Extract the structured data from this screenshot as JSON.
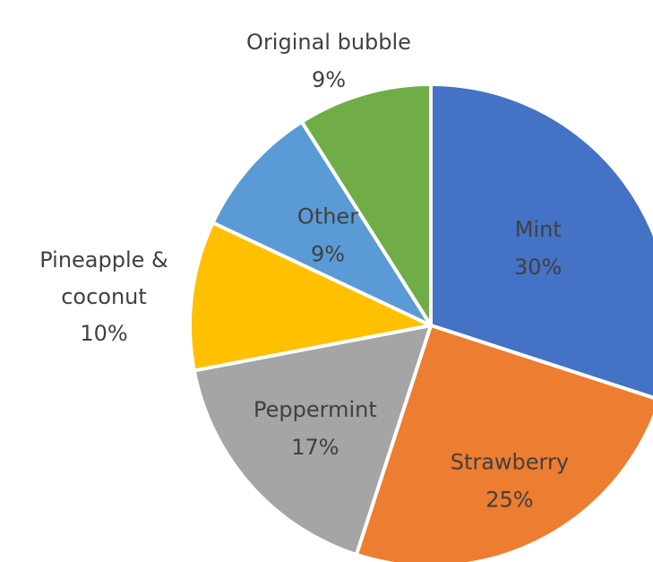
{
  "chart_data": {
    "type": "pie",
    "title": "",
    "start_angle_deg": 0,
    "direction": "clockwise",
    "legend": "none",
    "slices": [
      {
        "name": "Mint",
        "pct": 30,
        "value_label": "30%",
        "color": "#4472C4",
        "label_inside": true
      },
      {
        "name": "Strawberry",
        "pct": 25,
        "value_label": "25%",
        "color": "#ED7D31",
        "label_inside": true
      },
      {
        "name": "Peppermint",
        "pct": 17,
        "value_label": "17%",
        "color": "#A5A5A5",
        "label_inside": true
      },
      {
        "name": "Pineapple & coconut",
        "pct": 10,
        "value_label": "10%",
        "color": "#FFC000",
        "label_inside": false
      },
      {
        "name": "Other",
        "pct": 9,
        "value_label": "9%",
        "color": "#5B9BD5",
        "label_inside": true
      },
      {
        "name": "Original bubble",
        "pct": 9,
        "value_label": "9%",
        "color": "#70AD47",
        "label_inside": false
      }
    ]
  }
}
